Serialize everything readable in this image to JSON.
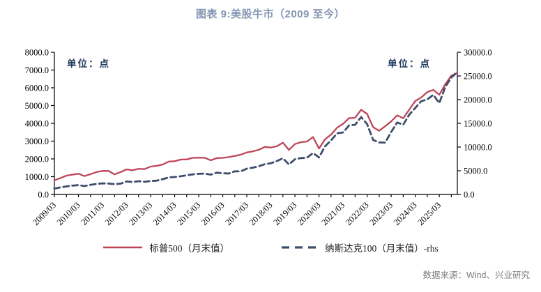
{
  "title": "图表 9:美股牛市（2009 至今）",
  "unit_label_left": "单位：点",
  "unit_label_right": "单位：点",
  "source": "数据来源：Wind、兴业研究",
  "colors": {
    "sp500_line": "#bd4557",
    "nasdaq_line": "#3e4d6b",
    "axis": "#000000",
    "title_text": "#8496b3",
    "unit_text": "#1e3a5f",
    "source_text": "#7d7d7d"
  },
  "legend": [
    {
      "label": "标普500（月末值）",
      "style": "solid"
    },
    {
      "label": "纳斯达克100（月末值）-rhs",
      "style": "dashed"
    }
  ],
  "chart_data": {
    "type": "line",
    "title": "图表 9:美股牛市（2009 至今）",
    "x_start": "2009/03",
    "x_interval_months": 3,
    "x_tick_labels": [
      "2009/03",
      "2010/03",
      "2011/03",
      "2012/03",
      "2013/03",
      "2014/03",
      "2015/03",
      "2016/03",
      "2017/03",
      "2018/03",
      "2019/03",
      "2020/03",
      "2021/03",
      "2022/03",
      "2023/03",
      "2024/03",
      "2025/03"
    ],
    "left_axis": {
      "label": "单位：点",
      "range": [
        0,
        8000
      ],
      "tick_labels": [
        "8000.0",
        "7000.0",
        "6000.0",
        "5000.0",
        "4000.0",
        "3000.0",
        "2000.0",
        "1000.0",
        "0.0"
      ]
    },
    "right_axis": {
      "label": "单位：点",
      "range": [
        0,
        30000
      ],
      "tick_labels": [
        "30000.0",
        "25000.0",
        "20000.0",
        "15000.0",
        "10000.0",
        "5000.0",
        "0.0"
      ]
    },
    "grid": false,
    "legend_position": "bottom",
    "series": [
      {
        "name": "标普500（月末值）",
        "axis": "left",
        "line_style": "solid",
        "values": [
          797,
          919,
          1057,
          1115,
          1169,
          1031,
          1141,
          1258,
          1326,
          1321,
          1131,
          1258,
          1408,
          1362,
          1441,
          1426,
          1569,
          1606,
          1682,
          1848,
          1872,
          1960,
          1972,
          2059,
          2068,
          2063,
          1920,
          2044,
          2060,
          2099,
          2168,
          2239,
          2363,
          2423,
          2519,
          2674,
          2641,
          2718,
          2914,
          2507,
          2834,
          2942,
          2977,
          3231,
          2585,
          3100,
          3363,
          3756,
          3973,
          4298,
          4308,
          4766,
          4530,
          3785,
          3586,
          3840,
          4109,
          4450,
          4288,
          4770,
          5254,
          5460,
          5762,
          5882,
          5612,
          6205,
          6688,
          6840
        ]
      },
      {
        "name": "纳斯达克100（月末值）-rhs",
        "axis": "right",
        "line_style": "dashed",
        "values": [
          1237,
          1478,
          1693,
          1860,
          1965,
          1766,
          2028,
          2218,
          2338,
          2307,
          2157,
          2278,
          2738,
          2615,
          2799,
          2661,
          2818,
          2909,
          3218,
          3592,
          3671,
          3843,
          4049,
          4236,
          4350,
          4397,
          4182,
          4593,
          4476,
          4418,
          4875,
          4863,
          5436,
          5647,
          5949,
          6396,
          6581,
          7041,
          7627,
          6330,
          7423,
          7671,
          7749,
          8733,
          7813,
          10157,
          11418,
          12888,
          13092,
          14555,
          14690,
          16320,
          14838,
          11504,
          10971,
          10939,
          13181,
          15179,
          14715,
          16826,
          18254,
          19683,
          20060,
          21012,
          19278,
          22679,
          24680,
          25820
        ]
      }
    ]
  }
}
